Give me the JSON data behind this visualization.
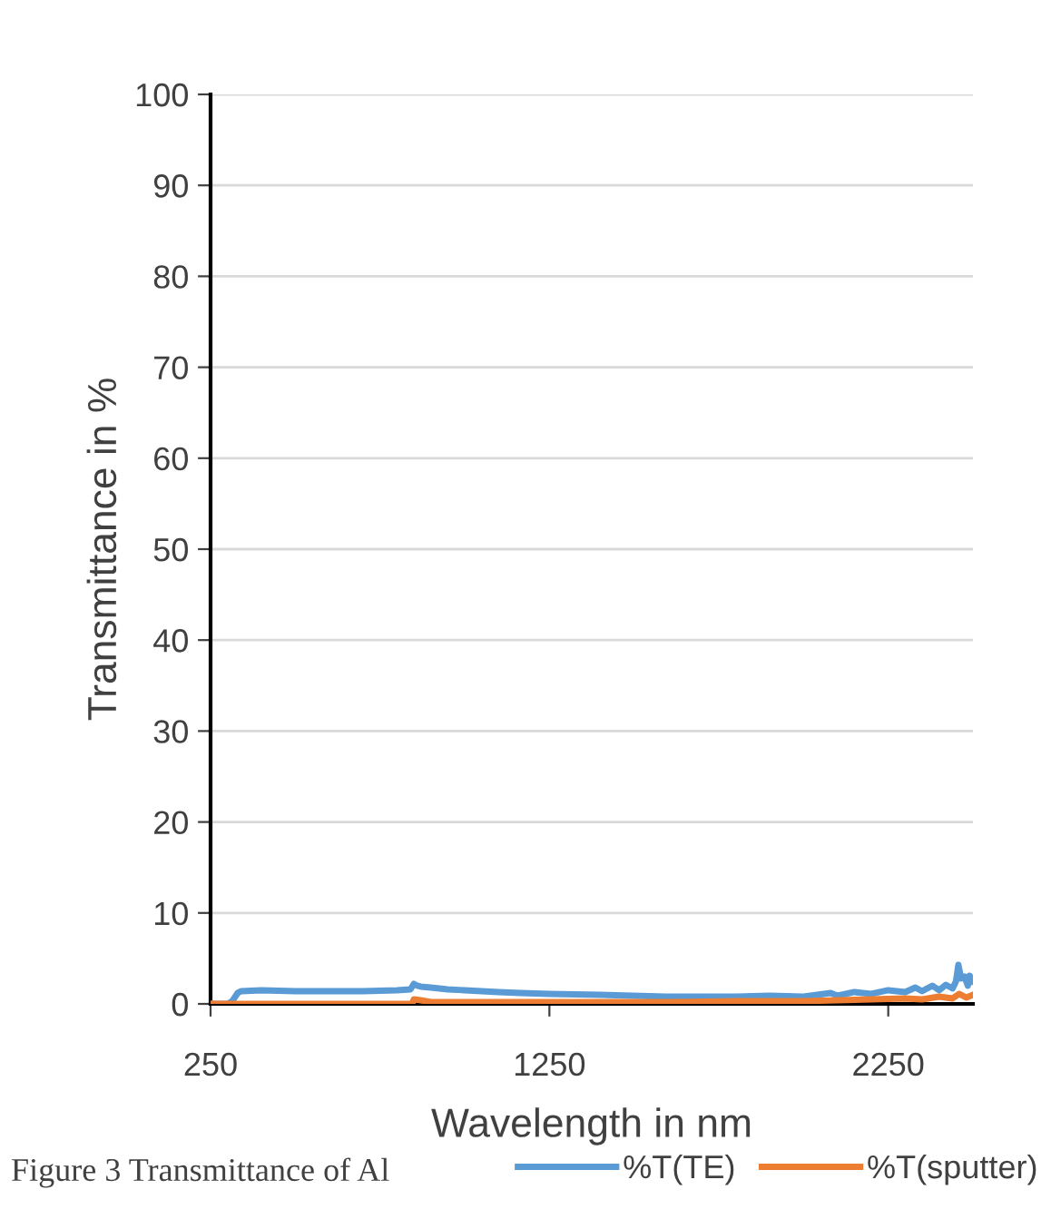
{
  "chart_data": {
    "type": "line",
    "xlabel": "Wavelength in nm",
    "ylabel": "Transmittance in %",
    "xlim": [
      250,
      2500
    ],
    "xticks": [
      250,
      1250,
      2250
    ],
    "ylim": [
      0,
      100
    ],
    "yticks": [
      0,
      10,
      20,
      30,
      40,
      50,
      60,
      70,
      80,
      90,
      100
    ],
    "grid": "y",
    "legend": "bottom",
    "marker": "none",
    "line_style": "solid",
    "annotations": [
      "Figure 3 Transmittance of Al"
    ],
    "series": [
      {
        "name": "%T(TE)",
        "color": "#5b9bd5",
        "x": [
          250,
          300,
          314,
          330,
          341,
          400,
          500,
          600,
          700,
          800,
          840,
          850,
          860,
          870,
          900,
          950,
          1000,
          1100,
          1165,
          1250,
          1400,
          1594,
          1700,
          1800,
          1900,
          2000,
          2040,
          2080,
          2100,
          2150,
          2200,
          2250,
          2300,
          2330,
          2350,
          2380,
          2400,
          2420,
          2440,
          2450,
          2457,
          2465,
          2475,
          2485,
          2490,
          2500
        ],
        "values": [
          0,
          0,
          0.3,
          1.2,
          1.4,
          1.5,
          1.4,
          1.4,
          1.4,
          1.5,
          1.6,
          2.2,
          2.0,
          1.9,
          1.8,
          1.6,
          1.5,
          1.3,
          1.2,
          1.1,
          1.0,
          0.8,
          0.8,
          0.8,
          0.9,
          0.8,
          1.0,
          1.2,
          0.9,
          1.3,
          1.1,
          1.5,
          1.3,
          1.8,
          1.4,
          2.0,
          1.5,
          2.1,
          1.7,
          2.5,
          4.3,
          2.8,
          3.0,
          2.0,
          3.1,
          2.5
        ]
      },
      {
        "name": "%T(sputter)",
        "color": "#ed7d31",
        "x": [
          250,
          400,
          600,
          800,
          845,
          850,
          870,
          900,
          1000,
          1200,
          1400,
          1600,
          1800,
          2000,
          2100,
          2200,
          2300,
          2350,
          2400,
          2440,
          2460,
          2480,
          2500
        ],
        "values": [
          0,
          0,
          0,
          0,
          0,
          0.5,
          0.4,
          0.2,
          0.2,
          0.2,
          0.2,
          0.2,
          0.3,
          0.3,
          0.4,
          0.5,
          0.6,
          0.5,
          0.8,
          0.6,
          1.1,
          0.7,
          1.0
        ]
      }
    ]
  }
}
